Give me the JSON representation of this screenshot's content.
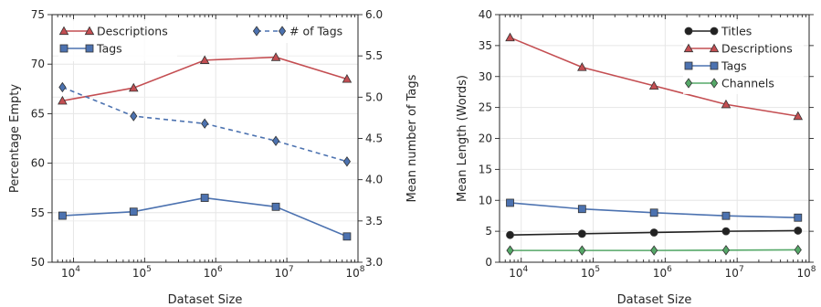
{
  "chart_data": [
    {
      "type": "line",
      "xlabel": "Dataset Size",
      "ylabel": "Percentage Empty",
      "y2label": "Mean number of Tags",
      "xscale": "log",
      "x": [
        7000,
        70000,
        700000,
        7000000,
        70000000
      ],
      "xlim": [
        5000,
        100000000
      ],
      "ylim": [
        50,
        75
      ],
      "y2lim": [
        3.0,
        6.0
      ],
      "xticks": [
        10000,
        100000,
        1000000,
        10000000,
        100000000
      ],
      "xtick_labels": [
        {
          "base": "10",
          "exp": "4"
        },
        {
          "base": "10",
          "exp": "5"
        },
        {
          "base": "10",
          "exp": "6"
        },
        {
          "base": "10",
          "exp": "7"
        },
        {
          "base": "10",
          "exp": "8"
        }
      ],
      "yticks": [
        50,
        55,
        60,
        65,
        70,
        75
      ],
      "ytick_labels": [
        "50",
        "55",
        "60",
        "65",
        "70",
        "75"
      ],
      "y2ticks": [
        3.0,
        3.5,
        4.0,
        4.5,
        5.0,
        5.5,
        6.0
      ],
      "y2tick_labels": [
        "3.0",
        "3.5",
        "4.0",
        "4.5",
        "5.0",
        "5.5",
        "6.0"
      ],
      "grid": true,
      "series": [
        {
          "name": "Descriptions",
          "axis": "left",
          "values": [
            66.3,
            67.6,
            70.4,
            70.7,
            68.5
          ],
          "color": "#c44e52",
          "marker": "triangle",
          "linestyle": "solid"
        },
        {
          "name": "Tags",
          "axis": "left",
          "values": [
            54.7,
            55.1,
            56.5,
            55.6,
            52.6
          ],
          "color": "#4c72b0",
          "marker": "square",
          "linestyle": "solid"
        },
        {
          "name": "# of Tags",
          "axis": "right",
          "values": [
            5.12,
            4.77,
            4.68,
            4.47,
            4.22
          ],
          "color": "#4c72b0",
          "marker": "diamond",
          "linestyle": "dashed"
        }
      ],
      "legends": [
        {
          "placement": "top-left",
          "entries": [
            "Descriptions",
            "Tags"
          ]
        },
        {
          "placement": "top-right",
          "entries": [
            "# of Tags"
          ]
        }
      ]
    },
    {
      "type": "line",
      "xlabel": "Dataset Size",
      "ylabel": "Mean Length (Words)",
      "xscale": "log",
      "x": [
        7000,
        70000,
        700000,
        7000000,
        70000000
      ],
      "xlim": [
        5000,
        100000000
      ],
      "ylim": [
        0,
        40
      ],
      "xticks": [
        10000,
        100000,
        1000000,
        10000000,
        100000000
      ],
      "xtick_labels": [
        {
          "base": "10",
          "exp": "4"
        },
        {
          "base": "10",
          "exp": "5"
        },
        {
          "base": "10",
          "exp": "6"
        },
        {
          "base": "10",
          "exp": "7"
        },
        {
          "base": "10",
          "exp": "8"
        }
      ],
      "yticks": [
        0,
        5,
        10,
        15,
        20,
        25,
        30,
        35,
        40
      ],
      "ytick_labels": [
        "0",
        "5",
        "10",
        "15",
        "20",
        "25",
        "30",
        "35",
        "40"
      ],
      "grid": true,
      "series": [
        {
          "name": "Titles",
          "values": [
            4.4,
            4.6,
            4.8,
            5.0,
            5.1
          ],
          "color": "#222222",
          "marker": "circle",
          "linestyle": "solid"
        },
        {
          "name": "Descriptions",
          "values": [
            36.3,
            31.5,
            28.5,
            25.5,
            23.6
          ],
          "color": "#c44e52",
          "marker": "triangle",
          "linestyle": "solid"
        },
        {
          "name": "Tags",
          "values": [
            9.6,
            8.6,
            8.0,
            7.5,
            7.2
          ],
          "color": "#4c72b0",
          "marker": "square",
          "linestyle": "solid"
        },
        {
          "name": "Channels",
          "values": [
            1.9,
            1.9,
            1.9,
            1.95,
            2.0
          ],
          "color": "#55a868",
          "marker": "diamond",
          "linestyle": "solid"
        }
      ],
      "legends": [
        {
          "placement": "top-right",
          "entries": [
            "Titles",
            "Descriptions",
            "Tags",
            "Channels"
          ]
        }
      ]
    }
  ]
}
